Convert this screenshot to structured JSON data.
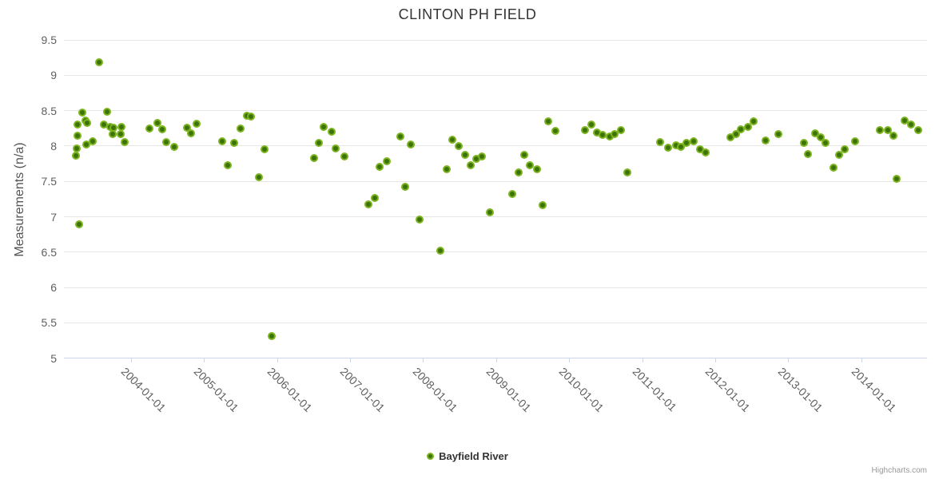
{
  "credits": "Highcharts.com",
  "colors": {
    "title": "#333333",
    "axis_label": "#606060",
    "y_axis_title": "#555555",
    "gridline": "#e6e6e6",
    "axis_line": "#ccd6eb",
    "marker_fill": "#3e7309",
    "marker_line": "#7bb41e",
    "legend_text": "#333333",
    "credits_text": "#999999",
    "background": "#ffffff"
  },
  "chart_data": {
    "type": "scatter",
    "title": "CLINTON PH FIELD",
    "xlabel": "",
    "ylabel": "Measurements (n/a)",
    "ylim": [
      5,
      9.5
    ],
    "y_ticks": [
      5,
      5.5,
      6,
      6.5,
      7,
      7.5,
      8,
      8.5,
      9,
      9.5
    ],
    "xlim": [
      "2003-02-01",
      "2014-11-26"
    ],
    "x_ticks": [
      "2004-01-01",
      "2005-01-01",
      "2006-01-01",
      "2007-01-01",
      "2008-01-01",
      "2009-01-01",
      "2010-01-01",
      "2011-01-01",
      "2012-01-01",
      "2013-01-01",
      "2014-01-01"
    ],
    "x_tick_rotation": 45,
    "grid": "horizontal-only",
    "legend_position": "bottom-center",
    "series": [
      {
        "name": "Bayfield River",
        "marker_fill": "#3e7309",
        "marker_line": "#7bb41e",
        "points": [
          [
            "2003-04-01",
            7.86
          ],
          [
            "2003-04-04",
            7.97
          ],
          [
            "2003-04-07",
            8.3
          ],
          [
            "2003-04-10",
            8.15
          ],
          [
            "2003-04-17",
            6.89
          ],
          [
            "2003-05-03",
            8.47
          ],
          [
            "2003-05-16",
            8.36
          ],
          [
            "2003-05-23",
            8.02
          ],
          [
            "2003-05-26",
            8.33
          ],
          [
            "2003-06-25",
            8.07
          ],
          [
            "2003-07-24",
            9.18
          ],
          [
            "2003-08-20",
            8.3
          ],
          [
            "2003-09-05",
            8.48
          ],
          [
            "2003-09-18",
            8.27
          ],
          [
            "2003-10-01",
            8.17
          ],
          [
            "2003-10-04",
            8.26
          ],
          [
            "2003-11-10",
            8.17
          ],
          [
            "2003-11-13",
            8.27
          ],
          [
            "2003-12-02",
            8.06
          ],
          [
            "2004-04-04",
            8.25
          ],
          [
            "2004-05-13",
            8.33
          ],
          [
            "2004-06-05",
            8.24
          ],
          [
            "2004-06-26",
            8.06
          ],
          [
            "2004-08-03",
            7.99
          ],
          [
            "2004-10-08",
            8.26
          ],
          [
            "2004-10-29",
            8.18
          ],
          [
            "2004-11-24",
            8.32
          ],
          [
            "2005-04-01",
            8.07
          ],
          [
            "2005-04-29",
            7.73
          ],
          [
            "2005-06-01",
            8.04
          ],
          [
            "2005-07-01",
            8.25
          ],
          [
            "2005-08-03",
            8.43
          ],
          [
            "2005-08-24",
            8.42
          ],
          [
            "2005-10-04",
            7.56
          ],
          [
            "2005-10-29",
            7.95
          ],
          [
            "2005-12-06",
            5.31
          ],
          [
            "2006-07-04",
            7.83
          ],
          [
            "2006-07-29",
            8.05
          ],
          [
            "2006-08-20",
            8.27
          ],
          [
            "2006-10-01",
            8.2
          ],
          [
            "2006-10-22",
            7.97
          ],
          [
            "2006-12-02",
            7.85
          ],
          [
            "2007-04-01",
            7.18
          ],
          [
            "2007-05-03",
            7.27
          ],
          [
            "2007-05-26",
            7.71
          ],
          [
            "2007-07-04",
            7.78
          ],
          [
            "2007-09-08",
            8.13
          ],
          [
            "2007-10-04",
            7.42
          ],
          [
            "2007-11-02",
            8.02
          ],
          [
            "2007-12-13",
            6.96
          ],
          [
            "2008-03-25",
            6.52
          ],
          [
            "2008-04-29",
            7.67
          ],
          [
            "2008-05-26",
            8.09
          ],
          [
            "2008-06-26",
            8.0
          ],
          [
            "2008-07-29",
            7.88
          ],
          [
            "2008-08-27",
            7.73
          ],
          [
            "2008-09-25",
            7.82
          ],
          [
            "2008-10-22",
            7.85
          ],
          [
            "2008-12-02",
            7.06
          ],
          [
            "2009-03-21",
            7.32
          ],
          [
            "2009-04-22",
            7.63
          ],
          [
            "2009-05-19",
            7.88
          ],
          [
            "2009-06-18",
            7.73
          ],
          [
            "2009-07-22",
            7.67
          ],
          [
            "2009-08-20",
            7.16
          ],
          [
            "2009-09-18",
            8.35
          ],
          [
            "2009-10-26",
            8.21
          ],
          [
            "2010-03-18",
            8.23
          ],
          [
            "2010-04-22",
            8.3
          ],
          [
            "2010-05-19",
            8.19
          ],
          [
            "2010-06-15",
            8.16
          ],
          [
            "2010-07-22",
            8.14
          ],
          [
            "2010-08-16",
            8.17
          ],
          [
            "2010-09-18",
            8.23
          ],
          [
            "2010-10-18",
            7.63
          ],
          [
            "2011-04-01",
            8.06
          ],
          [
            "2011-05-09",
            7.98
          ],
          [
            "2011-06-18",
            8.01
          ],
          [
            "2011-07-11",
            7.99
          ],
          [
            "2011-08-09",
            8.04
          ],
          [
            "2011-09-15",
            8.07
          ],
          [
            "2011-10-18",
            7.95
          ],
          [
            "2011-11-16",
            7.91
          ],
          [
            "2012-03-18",
            8.12
          ],
          [
            "2012-04-15",
            8.17
          ],
          [
            "2012-05-09",
            8.24
          ],
          [
            "2012-06-15",
            8.27
          ],
          [
            "2012-07-11",
            8.35
          ],
          [
            "2012-09-11",
            8.08
          ],
          [
            "2012-11-12",
            8.17
          ],
          [
            "2013-03-18",
            8.05
          ],
          [
            "2013-04-07",
            7.89
          ],
          [
            "2013-05-13",
            8.18
          ],
          [
            "2013-06-11",
            8.12
          ],
          [
            "2013-07-04",
            8.04
          ],
          [
            "2013-08-16",
            7.7
          ],
          [
            "2013-09-11",
            7.88
          ],
          [
            "2013-10-08",
            7.95
          ],
          [
            "2013-12-02",
            8.07
          ],
          [
            "2014-04-04",
            8.23
          ],
          [
            "2014-05-13",
            8.23
          ],
          [
            "2014-06-11",
            8.15
          ],
          [
            "2014-06-25",
            7.54
          ],
          [
            "2014-08-03",
            8.36
          ],
          [
            "2014-09-08",
            8.3
          ],
          [
            "2014-10-11",
            8.22
          ]
        ]
      }
    ]
  }
}
